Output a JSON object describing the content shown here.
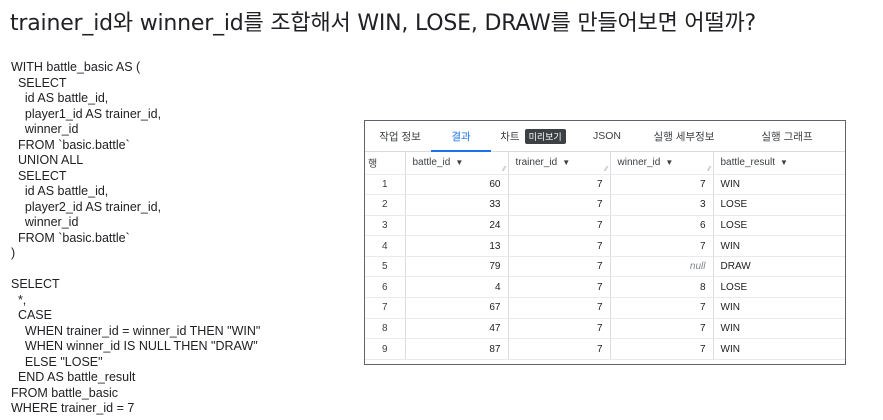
{
  "title": "trainer_id와 winner_id를 조합해서 WIN, LOSE, DRAW를 만들어보면 어떨까?",
  "code_lines": [
    "WITH battle_basic AS (",
    "  SELECT",
    "    id AS battle_id,",
    "    player1_id AS trainer_id,",
    "    winner_id",
    "  FROM `basic.battle`",
    "  UNION ALL",
    "  SELECT",
    "    id AS battle_id,",
    "    player2_id AS trainer_id,",
    "    winner_id",
    "  FROM `basic.battle`",
    ")",
    "",
    "SELECT",
    "  *,",
    "  CASE",
    "    WHEN trainer_id = winner_id THEN \"WIN\"",
    "    WHEN winner_id IS NULL THEN \"DRAW\"",
    "    ELSE \"LOSE\"",
    "  END AS battle_result",
    "FROM battle_basic",
    "WHERE trainer_id = 7"
  ],
  "tabs": [
    {
      "label": "작업 정보",
      "active": false
    },
    {
      "label": "결과",
      "active": true
    },
    {
      "label": "차트",
      "badge": "미리보기",
      "active": false
    },
    {
      "label": "JSON",
      "active": false
    },
    {
      "label": "실행 세부정보",
      "active": false
    },
    {
      "label": "실행 그래프",
      "active": false
    }
  ],
  "table": {
    "row_header": "행",
    "columns": [
      "battle_id",
      "trainer_id",
      "winner_id",
      "battle_result"
    ],
    "null_text": "null",
    "rows": [
      {
        "row": "1",
        "battle_id": "60",
        "trainer_id": "7",
        "winner_id": "7",
        "battle_result": "WIN"
      },
      {
        "row": "2",
        "battle_id": "33",
        "trainer_id": "7",
        "winner_id": "3",
        "battle_result": "LOSE"
      },
      {
        "row": "3",
        "battle_id": "24",
        "trainer_id": "7",
        "winner_id": "6",
        "battle_result": "LOSE"
      },
      {
        "row": "4",
        "battle_id": "13",
        "trainer_id": "7",
        "winner_id": "7",
        "battle_result": "WIN"
      },
      {
        "row": "5",
        "battle_id": "79",
        "trainer_id": "7",
        "winner_id": null,
        "battle_result": "DRAW"
      },
      {
        "row": "6",
        "battle_id": "4",
        "trainer_id": "7",
        "winner_id": "8",
        "battle_result": "LOSE"
      },
      {
        "row": "7",
        "battle_id": "67",
        "trainer_id": "7",
        "winner_id": "7",
        "battle_result": "WIN"
      },
      {
        "row": "8",
        "battle_id": "47",
        "trainer_id": "7",
        "winner_id": "7",
        "battle_result": "WIN"
      },
      {
        "row": "9",
        "battle_id": "87",
        "trainer_id": "7",
        "winner_id": "7",
        "battle_result": "WIN"
      }
    ]
  }
}
